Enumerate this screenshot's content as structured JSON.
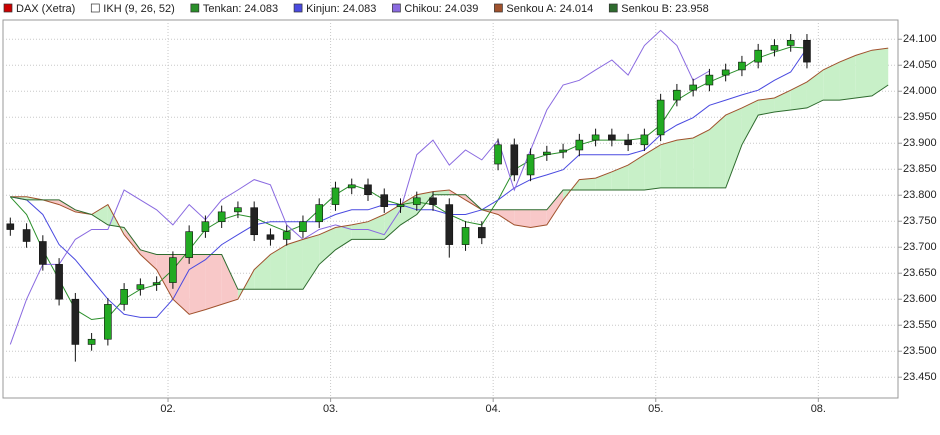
{
  "chart_data": {
    "type": "candlestick",
    "candles": {
      "name": "DAX (Xetra)",
      "color": "#cc0000",
      "up_color": "#22aa22",
      "down_color": "#222222",
      "open": [
        23.745,
        23.734,
        23.711,
        23.667,
        23.6,
        23.513,
        23.523,
        23.59,
        23.619,
        23.628,
        23.632,
        23.68,
        23.73,
        23.749,
        23.768,
        23.776,
        23.724,
        23.715,
        23.73,
        23.749,
        23.782,
        23.814,
        23.82,
        23.801,
        23.778,
        23.782,
        23.795,
        23.782,
        23.705,
        23.738,
        23.86,
        23.897,
        23.839,
        23.878,
        23.883,
        23.887,
        23.906,
        23.916,
        23.906,
        23.897,
        23.916,
        23.983,
        24.002,
        24.012,
        24.031,
        24.041,
        24.056,
        24.079,
        24.088,
        24.098,
        null,
        null,
        null,
        null,
        null
      ],
      "high": [
        23.757,
        23.746,
        23.723,
        23.679,
        23.612,
        23.535,
        23.602,
        23.631,
        23.64,
        23.644,
        23.692,
        23.742,
        23.761,
        23.78,
        23.788,
        23.788,
        23.736,
        23.742,
        23.761,
        23.794,
        23.826,
        23.832,
        23.832,
        23.813,
        23.794,
        23.807,
        23.807,
        23.794,
        23.75,
        23.75,
        23.909,
        23.909,
        23.89,
        23.895,
        23.899,
        23.918,
        23.928,
        23.928,
        23.918,
        23.928,
        23.995,
        24.014,
        24.024,
        24.043,
        24.053,
        24.068,
        24.091,
        24.1,
        24.11,
        24.11,
        null,
        null,
        null,
        null,
        null
      ],
      "low": [
        23.722,
        23.699,
        23.655,
        23.588,
        23.48,
        23.501,
        23.511,
        23.578,
        23.607,
        23.616,
        23.62,
        23.668,
        23.718,
        23.737,
        23.756,
        23.712,
        23.703,
        23.703,
        23.718,
        23.737,
        23.77,
        23.802,
        23.789,
        23.766,
        23.766,
        23.77,
        23.77,
        23.68,
        23.693,
        23.706,
        23.848,
        23.827,
        23.827,
        23.866,
        23.871,
        23.875,
        23.894,
        23.894,
        23.885,
        23.885,
        23.904,
        23.971,
        23.99,
        24.0,
        24.019,
        24.029,
        24.044,
        24.067,
        24.076,
        24.044,
        null,
        null,
        null,
        null,
        null
      ],
      "close": [
        23.734,
        23.711,
        23.667,
        23.6,
        23.513,
        23.523,
        23.59,
        23.619,
        23.628,
        23.632,
        23.68,
        23.73,
        23.749,
        23.768,
        23.776,
        23.724,
        23.715,
        23.73,
        23.749,
        23.782,
        23.814,
        23.82,
        23.801,
        23.778,
        23.782,
        23.795,
        23.782,
        23.705,
        23.738,
        23.718,
        23.897,
        23.839,
        23.878,
        23.883,
        23.887,
        23.906,
        23.916,
        23.906,
        23.897,
        23.916,
        23.983,
        24.002,
        24.012,
        24.031,
        24.041,
        24.056,
        24.079,
        24.088,
        24.098,
        24.056,
        null,
        null,
        null,
        null,
        null
      ]
    },
    "indicator": {
      "name": "IKH (9, 26, 52)",
      "color": "#ffffff"
    },
    "x": [
      0.03,
      0.13,
      0.23,
      0.33,
      0.43,
      0.53,
      0.63,
      0.73,
      0.83,
      0.93,
      1.03,
      1.13,
      1.23,
      1.33,
      1.43,
      1.53,
      1.63,
      1.73,
      1.83,
      1.93,
      2.03,
      2.13,
      2.23,
      2.33,
      2.43,
      2.53,
      2.63,
      2.73,
      2.83,
      2.93,
      3.03,
      3.13,
      3.23,
      3.33,
      3.43,
      3.53,
      3.63,
      3.73,
      3.83,
      3.93,
      4.03,
      4.13,
      4.23,
      4.33,
      4.43,
      4.53,
      4.63,
      4.73,
      4.83,
      4.93,
      5.03,
      5.13,
      5.23,
      5.33,
      5.43
    ],
    "series": [
      {
        "name": "Tenkan: 24.083",
        "color": "#2a8f2a",
        "values": [
          23.797,
          23.763,
          23.695,
          23.638,
          23.58,
          23.561,
          23.565,
          23.6,
          23.619,
          23.628,
          23.657,
          23.695,
          23.734,
          23.753,
          23.763,
          23.757,
          23.743,
          23.73,
          23.743,
          23.772,
          23.801,
          23.82,
          23.81,
          23.791,
          23.782,
          23.787,
          23.782,
          23.763,
          23.749,
          23.743,
          23.791,
          23.849,
          23.868,
          23.878,
          23.883,
          23.897,
          23.906,
          23.906,
          23.906,
          23.91,
          23.935,
          23.983,
          24.002,
          24.018,
          24.031,
          24.044,
          24.064,
          24.075,
          24.085,
          24.083,
          null,
          null,
          null,
          null,
          null
        ]
      },
      {
        "name": "Kinjun: 24.083",
        "color": "#4a4ae0",
        "values": [
          23.797,
          23.791,
          23.763,
          23.705,
          23.676,
          23.638,
          23.6,
          23.571,
          23.565,
          23.565,
          23.6,
          23.657,
          23.676,
          23.705,
          23.724,
          23.743,
          23.749,
          23.749,
          23.749,
          23.749,
          23.763,
          23.772,
          23.772,
          23.782,
          23.782,
          23.772,
          23.772,
          23.763,
          23.763,
          23.772,
          23.791,
          23.814,
          23.83,
          23.839,
          23.849,
          23.878,
          23.878,
          23.878,
          23.878,
          23.887,
          23.916,
          23.935,
          23.949,
          23.973,
          23.983,
          23.993,
          24.002,
          24.021,
          24.037,
          24.083,
          null,
          null,
          null,
          null,
          null
        ]
      },
      {
        "name": "Chikou: 24.039",
        "color": "#8a6ae0",
        "values": [
          23.513,
          23.6,
          23.667,
          23.667,
          23.715,
          23.734,
          23.734,
          23.81,
          23.791,
          23.772,
          23.743,
          23.782,
          23.753,
          23.791,
          23.81,
          23.83,
          23.82,
          23.743,
          23.715,
          23.734,
          23.743,
          23.734,
          23.734,
          23.724,
          23.772,
          23.878,
          23.906,
          23.858,
          23.887,
          23.868,
          23.906,
          23.81,
          23.887,
          23.964,
          24.012,
          24.021,
          24.041,
          24.06,
          24.031,
          24.088,
          24.117,
          24.088,
          24.021,
          24.039,
          null,
          null,
          null,
          null,
          null,
          null,
          null,
          null,
          null,
          null,
          null
        ]
      },
      {
        "name": "Senkou A: 24.014",
        "color": "#a0522d",
        "values": [
          23.797,
          23.797,
          23.791,
          23.782,
          23.768,
          23.763,
          23.782,
          23.724,
          23.686,
          23.657,
          23.6,
          23.571,
          23.58,
          23.59,
          23.6,
          23.657,
          23.686,
          23.705,
          23.715,
          23.724,
          23.738,
          23.743,
          23.749,
          23.763,
          23.782,
          23.801,
          23.807,
          23.81,
          23.791,
          23.772,
          23.763,
          23.743,
          23.738,
          23.743,
          23.791,
          23.83,
          23.833,
          23.845,
          23.858,
          23.878,
          23.897,
          23.906,
          23.91,
          23.926,
          23.954,
          23.968,
          23.983,
          23.987,
          24.002,
          24.018,
          24.041,
          24.056,
          24.069,
          24.079,
          24.083
        ]
      },
      {
        "name": "Senkou B: 23.958",
        "color": "#2e6b2e",
        "values": [
          23.797,
          23.791,
          23.791,
          23.791,
          23.772,
          23.763,
          23.743,
          23.738,
          23.695,
          23.686,
          23.686,
          23.686,
          23.686,
          23.686,
          23.619,
          23.619,
          23.619,
          23.619,
          23.619,
          23.667,
          23.695,
          23.715,
          23.715,
          23.715,
          23.743,
          23.763,
          23.801,
          23.801,
          23.801,
          23.772,
          23.772,
          23.772,
          23.772,
          23.772,
          23.81,
          23.81,
          23.81,
          23.81,
          23.81,
          23.81,
          23.814,
          23.814,
          23.814,
          23.814,
          23.814,
          23.897,
          23.954,
          23.96,
          23.964,
          23.968,
          23.983,
          23.983,
          23.987,
          23.991,
          24.012
        ]
      }
    ],
    "cloud_colors": {
      "up": "#c8f0c8",
      "down": "#f8c8c8"
    },
    "xlim": [
      -0.015,
      5.49
    ],
    "xticks": [
      {
        "value": 1,
        "label": "02."
      },
      {
        "value": 2,
        "label": "03."
      },
      {
        "value": 3,
        "label": "04."
      },
      {
        "value": 4,
        "label": "05."
      },
      {
        "value": 5,
        "label": "08."
      }
    ],
    "ylim": [
      23.41,
      24.137
    ],
    "yticks": [
      {
        "value": 23.45,
        "label": "23.450"
      },
      {
        "value": 23.5,
        "label": "23.500"
      },
      {
        "value": 23.55,
        "label": "23.550"
      },
      {
        "value": 23.6,
        "label": "23.600"
      },
      {
        "value": 23.65,
        "label": "23.650"
      },
      {
        "value": 23.7,
        "label": "23.700"
      },
      {
        "value": 23.75,
        "label": "23.750"
      },
      {
        "value": 23.8,
        "label": "23.800"
      },
      {
        "value": 23.85,
        "label": "23.850"
      },
      {
        "value": 23.9,
        "label": "23.900"
      },
      {
        "value": 23.95,
        "label": "23.950"
      },
      {
        "value": 24,
        "label": "24.000"
      },
      {
        "value": 24.05,
        "label": "24.050"
      },
      {
        "value": 24.1,
        "label": "24.100"
      }
    ],
    "grid": true
  }
}
